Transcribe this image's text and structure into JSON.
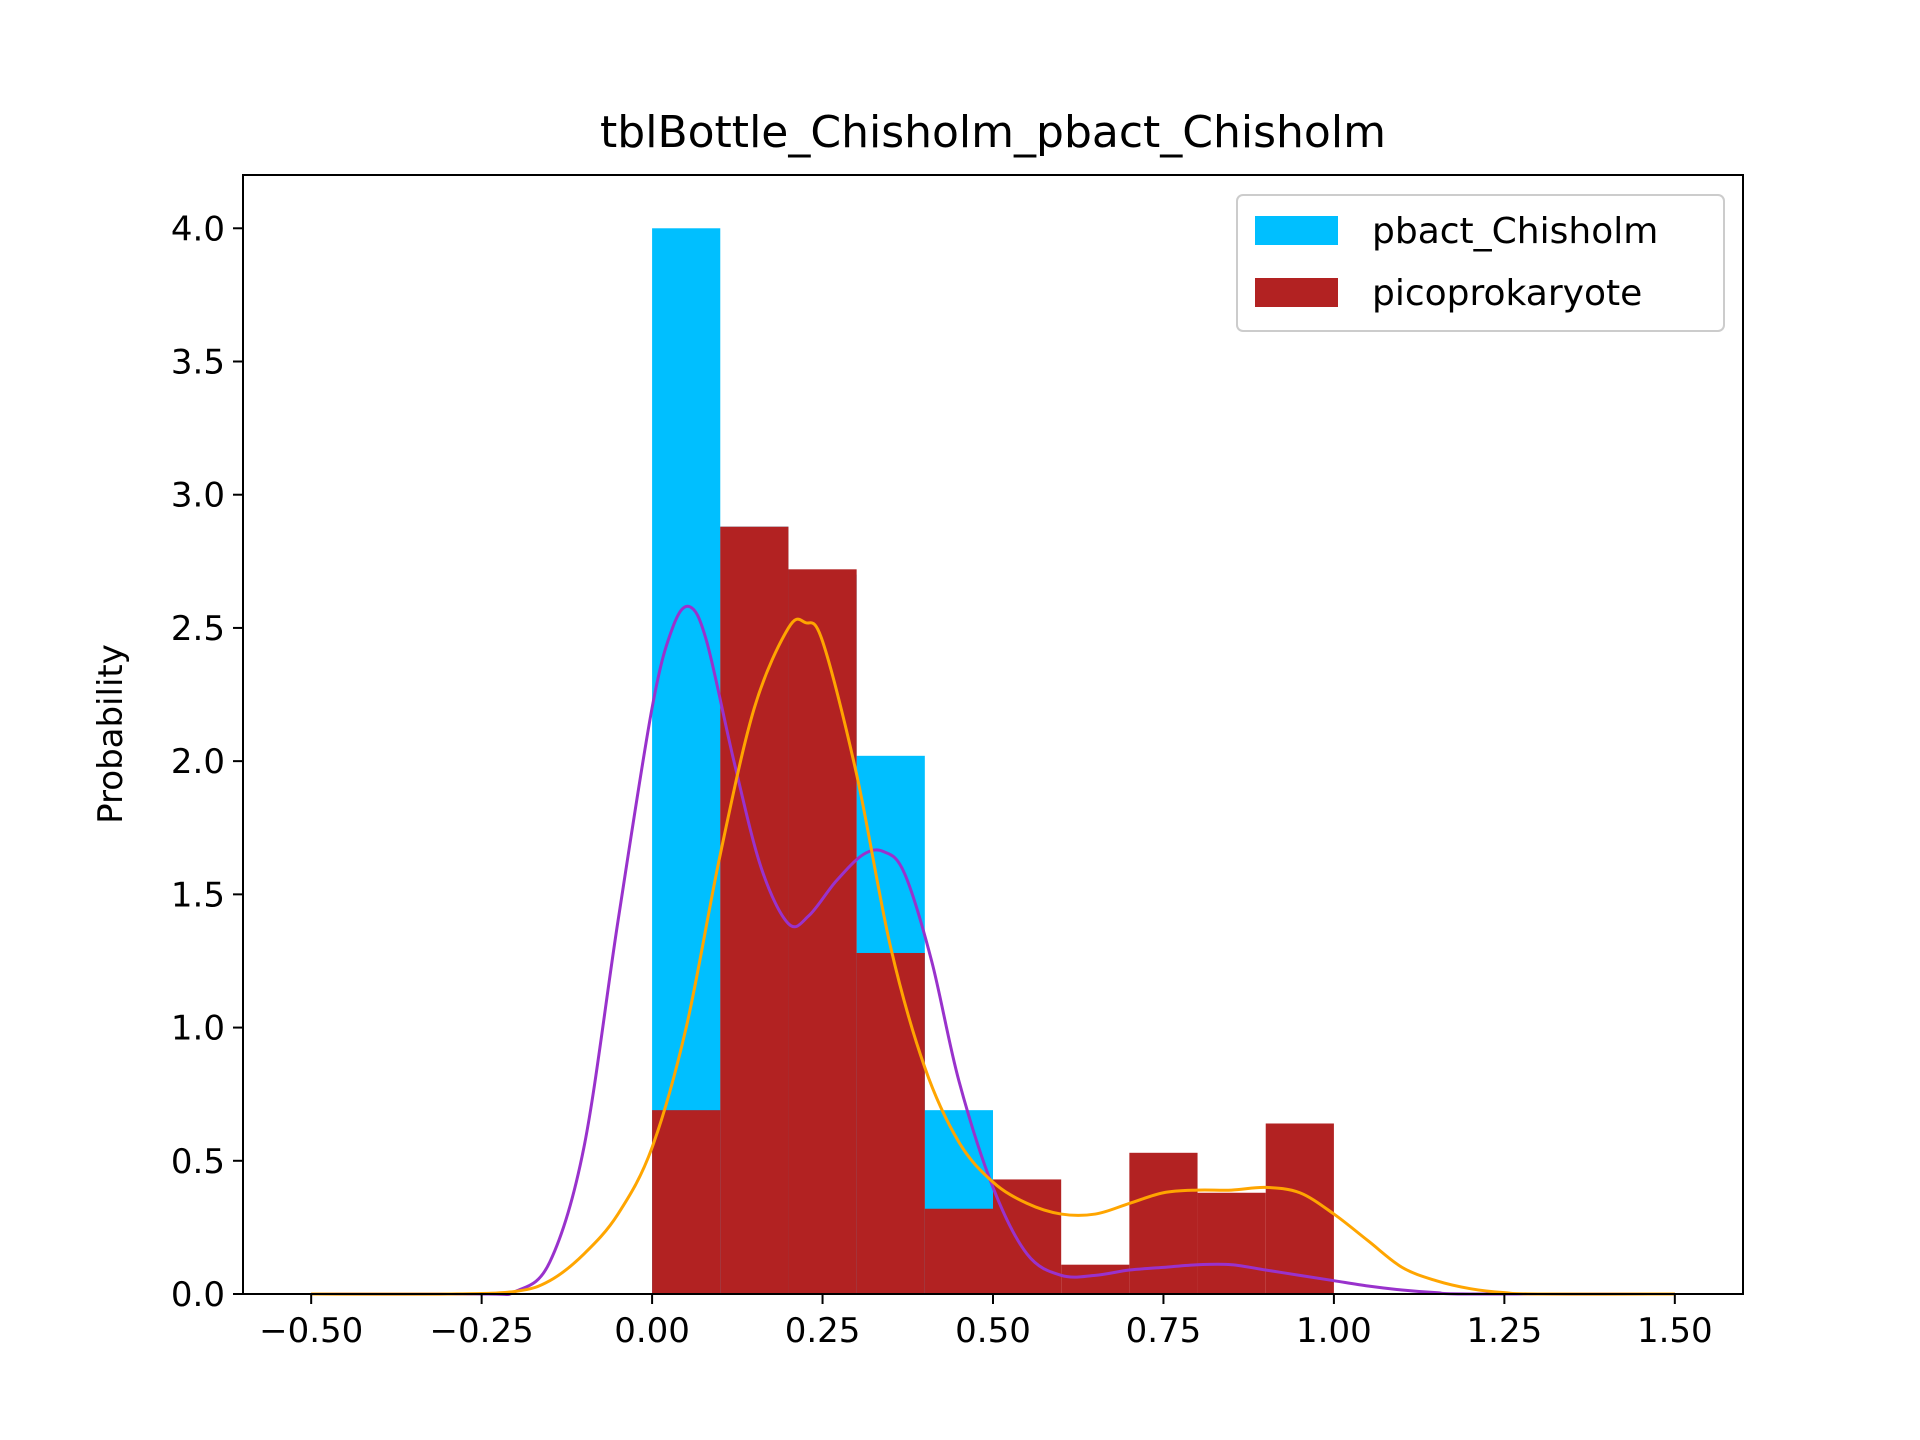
{
  "chart_data": {
    "type": "bar",
    "title": "tblBottle_Chisholm_pbact_Chisholm",
    "xlabel": "",
    "ylabel": "Probability",
    "xlim": [
      -0.6,
      1.6
    ],
    "ylim": [
      0,
      4.2
    ],
    "xticks": [
      -0.5,
      -0.25,
      0.0,
      0.25,
      0.5,
      0.75,
      1.0,
      1.25,
      1.5
    ],
    "xtick_labels": [
      "−0.50",
      "−0.25",
      "0.00",
      "0.25",
      "0.50",
      "0.75",
      "1.00",
      "1.25",
      "1.50"
    ],
    "yticks": [
      0.0,
      0.5,
      1.0,
      1.5,
      2.0,
      2.5,
      3.0,
      3.5,
      4.0
    ],
    "ytick_labels": [
      "0.0",
      "0.5",
      "1.0",
      "1.5",
      "2.0",
      "2.5",
      "3.0",
      "3.5",
      "4.0"
    ],
    "grid": false,
    "legend_position": "top-right",
    "histograms": [
      {
        "name": "pbact_Chisholm",
        "color": "#00bfff",
        "bins": [
          {
            "x0": 0.0,
            "x1": 0.1,
            "value": 4.0
          },
          {
            "x0": 0.1,
            "x1": 0.2,
            "value": 2.88
          },
          {
            "x0": 0.2,
            "x1": 0.3,
            "value": 2.7
          },
          {
            "x0": 0.3,
            "x1": 0.4,
            "value": 2.02
          },
          {
            "x0": 0.4,
            "x1": 0.5,
            "value": 0.69
          },
          {
            "x0": 0.5,
            "x1": 0.6,
            "value": 0.0
          },
          {
            "x0": 0.6,
            "x1": 0.7,
            "value": 0.0
          },
          {
            "x0": 0.7,
            "x1": 0.8,
            "value": 0.0
          },
          {
            "x0": 0.8,
            "x1": 0.9,
            "value": 0.0
          },
          {
            "x0": 0.9,
            "x1": 1.0,
            "value": 0.0
          }
        ]
      },
      {
        "name": "picoprokaryote",
        "color": "#b22222",
        "bins": [
          {
            "x0": 0.0,
            "x1": 0.1,
            "value": 0.69
          },
          {
            "x0": 0.1,
            "x1": 0.2,
            "value": 2.88
          },
          {
            "x0": 0.2,
            "x1": 0.3,
            "value": 2.72
          },
          {
            "x0": 0.3,
            "x1": 0.4,
            "value": 1.28
          },
          {
            "x0": 0.4,
            "x1": 0.5,
            "value": 0.32
          },
          {
            "x0": 0.5,
            "x1": 0.6,
            "value": 0.43
          },
          {
            "x0": 0.6,
            "x1": 0.7,
            "value": 0.11
          },
          {
            "x0": 0.7,
            "x1": 0.8,
            "value": 0.53
          },
          {
            "x0": 0.8,
            "x1": 0.9,
            "value": 0.38
          },
          {
            "x0": 0.9,
            "x1": 1.0,
            "value": 0.64
          }
        ]
      }
    ],
    "kde_curves": [
      {
        "color": "#9932cc",
        "points": [
          [
            -0.5,
            0
          ],
          [
            -0.25,
            0
          ],
          [
            -0.2,
            0.01
          ],
          [
            -0.15,
            0.12
          ],
          [
            -0.1,
            0.55
          ],
          [
            -0.05,
            1.4
          ],
          [
            0.0,
            2.2
          ],
          [
            0.03,
            2.5
          ],
          [
            0.055,
            2.58
          ],
          [
            0.08,
            2.45
          ],
          [
            0.12,
            2.0
          ],
          [
            0.16,
            1.6
          ],
          [
            0.2,
            1.39
          ],
          [
            0.23,
            1.42
          ],
          [
            0.27,
            1.55
          ],
          [
            0.31,
            1.65
          ],
          [
            0.34,
            1.66
          ],
          [
            0.37,
            1.58
          ],
          [
            0.41,
            1.25
          ],
          [
            0.45,
            0.8
          ],
          [
            0.5,
            0.4
          ],
          [
            0.55,
            0.15
          ],
          [
            0.6,
            0.07
          ],
          [
            0.65,
            0.07
          ],
          [
            0.7,
            0.09
          ],
          [
            0.75,
            0.1
          ],
          [
            0.8,
            0.11
          ],
          [
            0.85,
            0.11
          ],
          [
            0.9,
            0.09
          ],
          [
            0.95,
            0.07
          ],
          [
            1.0,
            0.05
          ],
          [
            1.05,
            0.03
          ],
          [
            1.1,
            0.015
          ],
          [
            1.15,
            0.005
          ],
          [
            1.2,
            0
          ],
          [
            1.5,
            0
          ]
        ]
      },
      {
        "color": "#ffa500",
        "points": [
          [
            -0.5,
            0
          ],
          [
            -0.3,
            0
          ],
          [
            -0.2,
            0.01
          ],
          [
            -0.15,
            0.05
          ],
          [
            -0.1,
            0.15
          ],
          [
            -0.05,
            0.3
          ],
          [
            0.0,
            0.55
          ],
          [
            0.05,
            1.0
          ],
          [
            0.1,
            1.65
          ],
          [
            0.15,
            2.2
          ],
          [
            0.2,
            2.5
          ],
          [
            0.225,
            2.52
          ],
          [
            0.25,
            2.45
          ],
          [
            0.3,
            1.95
          ],
          [
            0.35,
            1.3
          ],
          [
            0.4,
            0.85
          ],
          [
            0.45,
            0.57
          ],
          [
            0.5,
            0.42
          ],
          [
            0.55,
            0.34
          ],
          [
            0.6,
            0.3
          ],
          [
            0.65,
            0.3
          ],
          [
            0.7,
            0.34
          ],
          [
            0.75,
            0.38
          ],
          [
            0.8,
            0.39
          ],
          [
            0.85,
            0.39
          ],
          [
            0.9,
            0.4
          ],
          [
            0.95,
            0.38
          ],
          [
            1.0,
            0.3
          ],
          [
            1.05,
            0.2
          ],
          [
            1.1,
            0.1
          ],
          [
            1.15,
            0.05
          ],
          [
            1.2,
            0.02
          ],
          [
            1.25,
            0.005
          ],
          [
            1.3,
            0
          ],
          [
            1.5,
            0
          ]
        ]
      }
    ]
  }
}
